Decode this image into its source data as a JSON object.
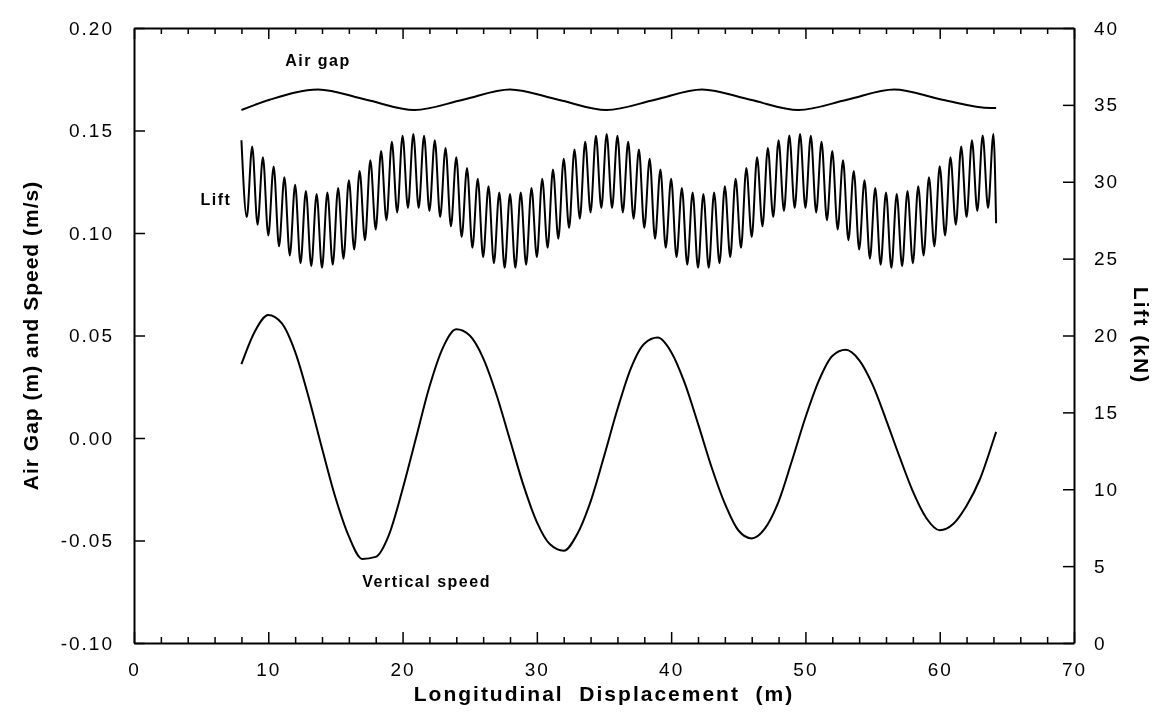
{
  "chart_data": {
    "type": "line",
    "xlabel": "Longitudinal  Displacement  (m)",
    "ylabel": "Air Gap (m) and Speed (m/s)",
    "y2label": "Lift (kN)",
    "xlim": [
      0,
      70
    ],
    "xticks": [
      0,
      {
        "value": 2,
        "label": null
      },
      {
        "value": 4,
        "label": null
      },
      {
        "value": 6,
        "label": null
      },
      {
        "value": 8,
        "label": null
      },
      10,
      {
        "value": 12,
        "label": null
      },
      {
        "value": 14,
        "label": null
      },
      {
        "value": 16,
        "label": null
      },
      {
        "value": 18,
        "label": null
      },
      20,
      {
        "value": 22,
        "label": null
      },
      {
        "value": 24,
        "label": null
      },
      {
        "value": 26,
        "label": null
      },
      {
        "value": 28,
        "label": null
      },
      30,
      {
        "value": 32,
        "label": null
      },
      {
        "value": 34,
        "label": null
      },
      {
        "value": 36,
        "label": null
      },
      {
        "value": 38,
        "label": null
      },
      40,
      {
        "value": 42,
        "label": null
      },
      {
        "value": 44,
        "label": null
      },
      {
        "value": 46,
        "label": null
      },
      {
        "value": 48,
        "label": null
      },
      50,
      {
        "value": 52,
        "label": null
      },
      {
        "value": 54,
        "label": null
      },
      {
        "value": 56,
        "label": null
      },
      {
        "value": 58,
        "label": null
      },
      60,
      {
        "value": 62,
        "label": null
      },
      {
        "value": 64,
        "label": null
      },
      {
        "value": 66,
        "label": null
      },
      {
        "value": 68,
        "label": null
      },
      70
    ],
    "ylim": [
      -0.1,
      0.2
    ],
    "yticks": [
      {
        "value": -0.1,
        "label": "-0.10"
      },
      {
        "value": -0.05,
        "label": "-0.05"
      },
      {
        "value": 0,
        "label": "0.00"
      },
      {
        "value": 0.05,
        "label": "0.05"
      },
      {
        "value": 0.1,
        "label": "0.10"
      },
      {
        "value": 0.15,
        "label": "0.15"
      },
      {
        "value": 0.2,
        "label": "0.20"
      }
    ],
    "y2lim": [
      0,
      40
    ],
    "y2ticks": [
      0,
      5,
      10,
      15,
      20,
      25,
      30,
      35,
      40
    ],
    "grid": false,
    "marker": "none",
    "line_style": "solid",
    "series": [
      {
        "name": "Air gap",
        "color": "#000000",
        "x": [
          8,
          10.1,
          13.7,
          17.3,
          20.9,
          24.5,
          28,
          31.6,
          35.2,
          38.8,
          42.3,
          45.9,
          49.5,
          53.1,
          56.6,
          60.2,
          63.8,
          64.2
        ],
        "values": [
          0.16,
          0.165,
          0.17,
          0.165,
          0.16,
          0.165,
          0.17,
          0.165,
          0.16,
          0.165,
          0.17,
          0.165,
          0.16,
          0.165,
          0.17,
          0.165,
          0.161,
          0.161
        ]
      },
      {
        "name": "Lift",
        "color": "#000000",
        "axis": "y2",
        "x": [
          8,
          8.4,
          8.8,
          9.2,
          9.6,
          10,
          10.4,
          10.8,
          11.2,
          11.6,
          12,
          12.4,
          12.8,
          13.2,
          13.6,
          14,
          14.4,
          14.8,
          15.2,
          15.6,
          16,
          16.4,
          16.8,
          17.2,
          17.6,
          18,
          18.4,
          18.8,
          19.2,
          19.6,
          20,
          20.4,
          20.8,
          21.2,
          21.6,
          22,
          22.4,
          22.8,
          23.2,
          23.6,
          24,
          24.4,
          24.8,
          25.2,
          25.6,
          26,
          26.4,
          26.8,
          27.2,
          27.6,
          28,
          28.4,
          28.8,
          29.2,
          29.6,
          30,
          30.4,
          30.8,
          31.2,
          31.6,
          32,
          32.4,
          32.8,
          33.2,
          33.6,
          34,
          34.4,
          34.8,
          35.2,
          35.6,
          36,
          36.4,
          36.8,
          37.2,
          37.6,
          38,
          38.4,
          38.8,
          39.2,
          39.6,
          40,
          40.4,
          40.8,
          41.2,
          41.6,
          42,
          42.4,
          42.8,
          43.2,
          43.6,
          44,
          44.4,
          44.8,
          45.2,
          45.6,
          46,
          46.4,
          46.8,
          47.2,
          47.6,
          48,
          48.4,
          48.8,
          49.2,
          49.6,
          50,
          50.4,
          50.8,
          51.2,
          51.6,
          52,
          52.4,
          52.8,
          53.2,
          53.6,
          54,
          54.4,
          54.8,
          55.2,
          55.6,
          56,
          56.4,
          56.8,
          57.2,
          57.6,
          58,
          58.4,
          58.8,
          59.2,
          59.6,
          60,
          60.4,
          60.8,
          61.2,
          61.6,
          62,
          62.4,
          62.8,
          63.2,
          63.6,
          64,
          64.2
        ],
        "values": [
          32.7,
          27.7,
          32.3,
          27.2,
          31.6,
          26.5,
          31.0,
          25.8,
          30.3,
          25.2,
          29.8,
          24.7,
          29.4,
          24.5,
          29.2,
          24.4,
          29.3,
          24.6,
          29.6,
          25.0,
          30.1,
          25.6,
          30.7,
          26.2,
          31.4,
          26.9,
          32.0,
          27.5,
          32.6,
          28.0,
          33.0,
          28.3,
          33.1,
          28.3,
          33.0,
          28.1,
          32.7,
          27.7,
          32.2,
          27.1,
          31.6,
          26.4,
          30.9,
          25.7,
          30.2,
          25.1,
          29.7,
          24.7,
          29.3,
          24.4,
          29.2,
          24.4,
          29.3,
          24.6,
          29.6,
          25.1,
          30.2,
          25.7,
          30.8,
          26.3,
          31.5,
          27.0,
          32.1,
          27.6,
          32.6,
          28.0,
          33.0,
          28.3,
          33.1,
          28.3,
          33.0,
          28.0,
          32.6,
          27.6,
          32.1,
          27.0,
          31.5,
          26.3,
          30.8,
          25.7,
          30.2,
          25.1,
          29.6,
          24.6,
          29.3,
          24.4,
          29.2,
          24.4,
          29.3,
          24.7,
          29.7,
          25.1,
          30.2,
          25.7,
          30.9,
          26.4,
          31.6,
          27.1,
          32.2,
          27.7,
          32.7,
          28.1,
          33.0,
          28.3,
          33.1,
          28.3,
          33.0,
          28.0,
          32.6,
          27.5,
          32.0,
          26.9,
          31.4,
          26.2,
          30.7,
          25.6,
          30.1,
          25.0,
          29.6,
          24.6,
          29.3,
          24.4,
          29.2,
          24.5,
          29.4,
          24.7,
          29.7,
          25.2,
          30.3,
          25.8,
          31.0,
          26.5,
          31.6,
          27.2,
          32.3,
          27.7,
          32.7,
          28.1,
          33.0,
          28.3,
          33.1,
          27.3
        ]
      },
      {
        "name": "Vertical speed",
        "color": "#000000",
        "x": [
          8,
          9,
          10,
          11,
          12,
          13,
          14,
          15,
          16,
          17,
          18,
          19,
          20,
          21,
          22,
          23,
          24,
          25,
          26,
          27,
          28,
          29,
          30,
          31,
          32,
          33,
          34,
          35,
          36,
          37,
          38,
          39,
          40,
          41,
          42,
          43,
          44,
          45,
          46,
          47,
          48,
          49,
          50,
          51,
          52,
          53,
          54,
          55,
          56,
          57,
          58,
          59,
          60,
          61,
          62,
          63,
          64,
          64.2
        ],
        "values": [
          0.036,
          0.052,
          0.06,
          0.056,
          0.042,
          0.02,
          -0.005,
          -0.029,
          -0.048,
          -0.059,
          -0.058,
          -0.047,
          -0.025,
          0,
          0.025,
          0.044,
          0.053,
          0.05,
          0.039,
          0.021,
          -0.001,
          -0.023,
          -0.041,
          -0.052,
          -0.055,
          -0.047,
          -0.031,
          -0.009,
          0.014,
          0.034,
          0.046,
          0.049,
          0.042,
          0.027,
          0.007,
          -0.014,
          -0.032,
          -0.045,
          -0.049,
          -0.044,
          -0.031,
          -0.011,
          0.01,
          0.028,
          0.04,
          0.043,
          0.038,
          0.026,
          0.009,
          -0.009,
          -0.026,
          -0.039,
          -0.045,
          -0.042,
          -0.033,
          -0.02,
          -0.001,
          0.003
        ]
      }
    ]
  }
}
